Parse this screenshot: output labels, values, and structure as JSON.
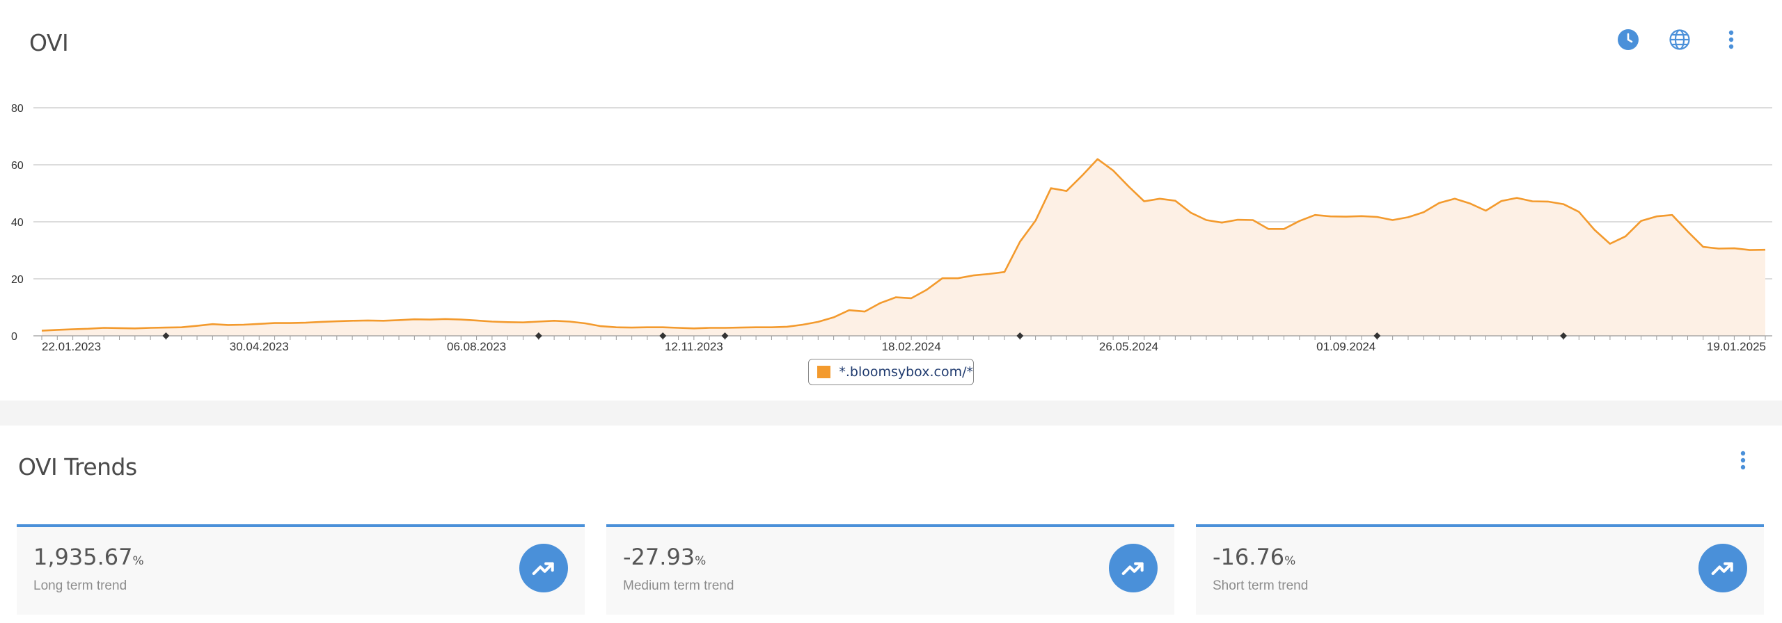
{
  "ovi_panel": {
    "title": "OVI",
    "icons": [
      "clock-icon",
      "globe-icon",
      "more-vertical-icon"
    ],
    "accent_color": "#4a90d9"
  },
  "chart_data": {
    "type": "area",
    "ylim": [
      0,
      80
    ],
    "yticks": [
      "0",
      "20",
      "40",
      "60",
      "80"
    ],
    "xtick_labels": [
      "22.01.2023",
      "30.04.2023",
      "06.08.2023",
      "12.11.2023",
      "18.02.2024",
      "26.05.2024",
      "01.09.2024",
      "19.01.2025"
    ],
    "grid": true,
    "legend_position": "bottom-center",
    "series": [
      {
        "name": "*.bloomsybox.com/*",
        "color": "#f39a2d",
        "fill": "#fdf0e5",
        "values": [
          1.8,
          2.1,
          2.3,
          2.5,
          2.8,
          2.7,
          2.6,
          2.8,
          2.9,
          3.0,
          3.5,
          4.1,
          3.8,
          3.9,
          4.2,
          4.5,
          4.5,
          4.6,
          4.9,
          5.1,
          5.3,
          5.4,
          5.3,
          5.5,
          5.8,
          5.7,
          5.9,
          5.7,
          5.4,
          5.0,
          4.8,
          4.7,
          5.0,
          5.3,
          5.0,
          4.4,
          3.4,
          3.0,
          2.9,
          3.0,
          3.0,
          2.8,
          2.6,
          2.8,
          2.8,
          2.9,
          3.0,
          3.0,
          3.2,
          3.9,
          4.9,
          6.5,
          9.0,
          8.5,
          11.5,
          13.5,
          13.2,
          16.2,
          20.2,
          20.2,
          21.2,
          21.7,
          22.4,
          33.0,
          40.4,
          51.8,
          50.8,
          56.2,
          62.0,
          58.0,
          52.4,
          47.2,
          48.1,
          47.4,
          43.2,
          40.6,
          39.7,
          40.7,
          40.6,
          37.5,
          37.5,
          40.3,
          42.4,
          41.9,
          41.8,
          42.0,
          41.7,
          40.6,
          41.6,
          43.4,
          46.6,
          48.1,
          46.4,
          43.9,
          47.3,
          48.4,
          47.2,
          47.1,
          46.2,
          43.5,
          37.2,
          32.3,
          34.9,
          40.3,
          41.9,
          42.4,
          36.6,
          31.2,
          30.6,
          30.7,
          30.1,
          30.2
        ]
      }
    ]
  },
  "legend": {
    "label": "*.bloomsybox.com/*",
    "color": "#f39a2d"
  },
  "trends_panel": {
    "title": "OVI Trends",
    "cards": [
      {
        "value": "1,935.67",
        "unit": "%",
        "label": "Long term trend",
        "icon": "trending-up-icon"
      },
      {
        "value": "-27.93",
        "unit": "%",
        "label": "Medium term trend",
        "icon": "trending-up-icon"
      },
      {
        "value": "-16.76",
        "unit": "%",
        "label": "Short term trend",
        "icon": "trending-up-icon"
      }
    ]
  }
}
